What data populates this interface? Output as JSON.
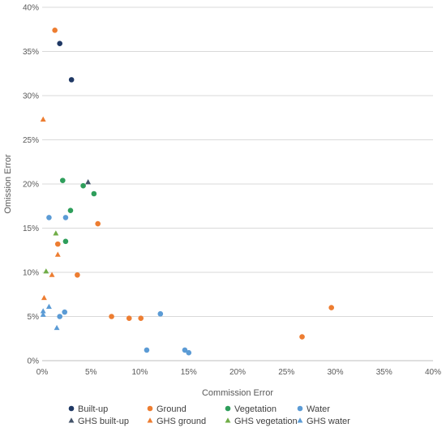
{
  "chart_data": {
    "type": "scatter",
    "xlabel": "Commission Error",
    "ylabel": "Omission Error",
    "xlim": [
      0,
      40
    ],
    "ylim": [
      0,
      40
    ],
    "x_ticks": [
      "0%",
      "5%",
      "10%",
      "15%",
      "20%",
      "25%",
      "30%",
      "35%",
      "40%"
    ],
    "y_ticks": [
      "0%",
      "5%",
      "10%",
      "15%",
      "20%",
      "25%",
      "30%",
      "35%",
      "40%"
    ],
    "grid": "horizontal",
    "legend_position": "bottom",
    "series": [
      {
        "name": "Built-up",
        "marker": "circle",
        "color": "#1f3864",
        "points": [
          [
            1.8,
            35.9
          ],
          [
            3.0,
            31.8
          ]
        ]
      },
      {
        "name": "Ground",
        "marker": "circle",
        "color": "#ed7d31",
        "points": [
          [
            1.3,
            37.4
          ],
          [
            5.7,
            15.5
          ],
          [
            1.6,
            13.2
          ],
          [
            3.6,
            9.7
          ],
          [
            7.1,
            5.0
          ],
          [
            8.9,
            4.8
          ],
          [
            10.1,
            4.8
          ],
          [
            29.6,
            6.0
          ],
          [
            26.6,
            2.7
          ]
        ]
      },
      {
        "name": "Vegetation",
        "marker": "circle",
        "color": "#2e9e5b",
        "points": [
          [
            2.1,
            20.4
          ],
          [
            4.2,
            19.8
          ],
          [
            5.3,
            18.9
          ],
          [
            2.9,
            17.0
          ],
          [
            2.4,
            13.5
          ]
        ]
      },
      {
        "name": "Water",
        "marker": "circle",
        "color": "#5b9bd5",
        "points": [
          [
            0.7,
            16.2
          ],
          [
            2.4,
            16.2
          ],
          [
            2.3,
            5.5
          ],
          [
            1.8,
            5.0
          ],
          [
            12.1,
            5.3
          ],
          [
            10.7,
            1.2
          ],
          [
            14.6,
            1.2
          ],
          [
            15.0,
            0.9
          ]
        ]
      },
      {
        "name": "GHS built-up",
        "marker": "triangle",
        "color": "#44546a",
        "points": [
          [
            4.7,
            20.2
          ]
        ]
      },
      {
        "name": "GHS ground",
        "marker": "triangle",
        "color": "#ed7d31",
        "points": [
          [
            0.1,
            27.3
          ],
          [
            1.6,
            12.0
          ],
          [
            1.0,
            9.7
          ],
          [
            0.2,
            7.1
          ]
        ]
      },
      {
        "name": "GHS vegetation",
        "marker": "triangle",
        "color": "#70ad47",
        "points": [
          [
            1.4,
            14.4
          ],
          [
            0.4,
            10.1
          ]
        ]
      },
      {
        "name": "GHS water",
        "marker": "triangle",
        "color": "#5b9bd5",
        "points": [
          [
            0.1,
            5.6
          ],
          [
            0.1,
            5.2
          ],
          [
            0.7,
            6.1
          ],
          [
            1.5,
            3.7
          ]
        ]
      }
    ]
  }
}
